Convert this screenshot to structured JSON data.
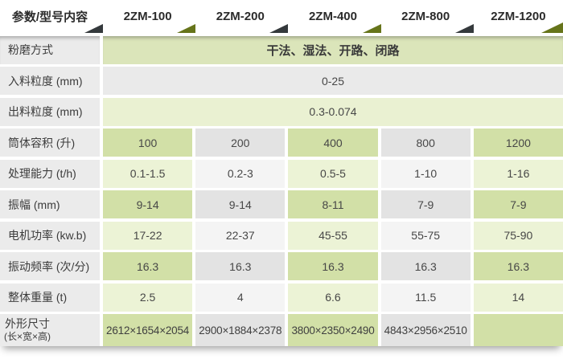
{
  "table": {
    "header": {
      "param_label": "参数/型号内容",
      "models": [
        "2ZM-100",
        "2ZM-200",
        "2ZM-400",
        "2ZM-800",
        "2ZM-1200"
      ]
    },
    "rows": [
      {
        "label": "粉磨方式",
        "span": "干法、湿法、开路、闭路"
      },
      {
        "label": "入料粒度 (mm)",
        "span": "0-25"
      },
      {
        "label": "出料粒度 (mm)",
        "span": "0.3-0.074"
      },
      {
        "label": "筒体容积 (升)",
        "values": [
          "100",
          "200",
          "400",
          "800",
          "1200"
        ]
      },
      {
        "label": "处理能力 (t/h)",
        "values": [
          "0.1-1.5",
          "0.2-3",
          "0.5-5",
          "1-10",
          "1-16"
        ]
      },
      {
        "label": "振幅 (mm)",
        "values": [
          "9-14",
          "9-14",
          "8-11",
          "7-9",
          "7-9"
        ]
      },
      {
        "label": "电机功率 (kw.b)",
        "values": [
          "17-22",
          "22-37",
          "45-55",
          "55-75",
          "75-90"
        ]
      },
      {
        "label": "振动频率 (次/分)",
        "values": [
          "16.3",
          "16.3",
          "16.3",
          "16.3",
          "16.3"
        ]
      },
      {
        "label": "整体重量 (t)",
        "values": [
          "2.5",
          "4",
          "6.6",
          "11.5",
          "14"
        ]
      },
      {
        "label": "外形尺寸",
        "label_sub": "(长×宽×高)",
        "values": [
          "2612×1654×2054",
          "2900×1884×2378",
          "3800×2350×2490",
          "4843×2956×2510",
          ""
        ]
      }
    ],
    "colors": {
      "cell_green_dark": "#d2e0a7",
      "cell_green_light": "#ecf3d6",
      "cell_gray_dark": "#e3e3e3",
      "cell_gray_light": "#f4f4f4",
      "span_row_green": "#dbe5ba",
      "span_row_lightgreen": "#eaf1d2",
      "span_row_gray": "#eaeaea",
      "label_column": "#ebebeb",
      "triangle_dark": "#34393c",
      "triangle_olive": "#66741a"
    }
  }
}
